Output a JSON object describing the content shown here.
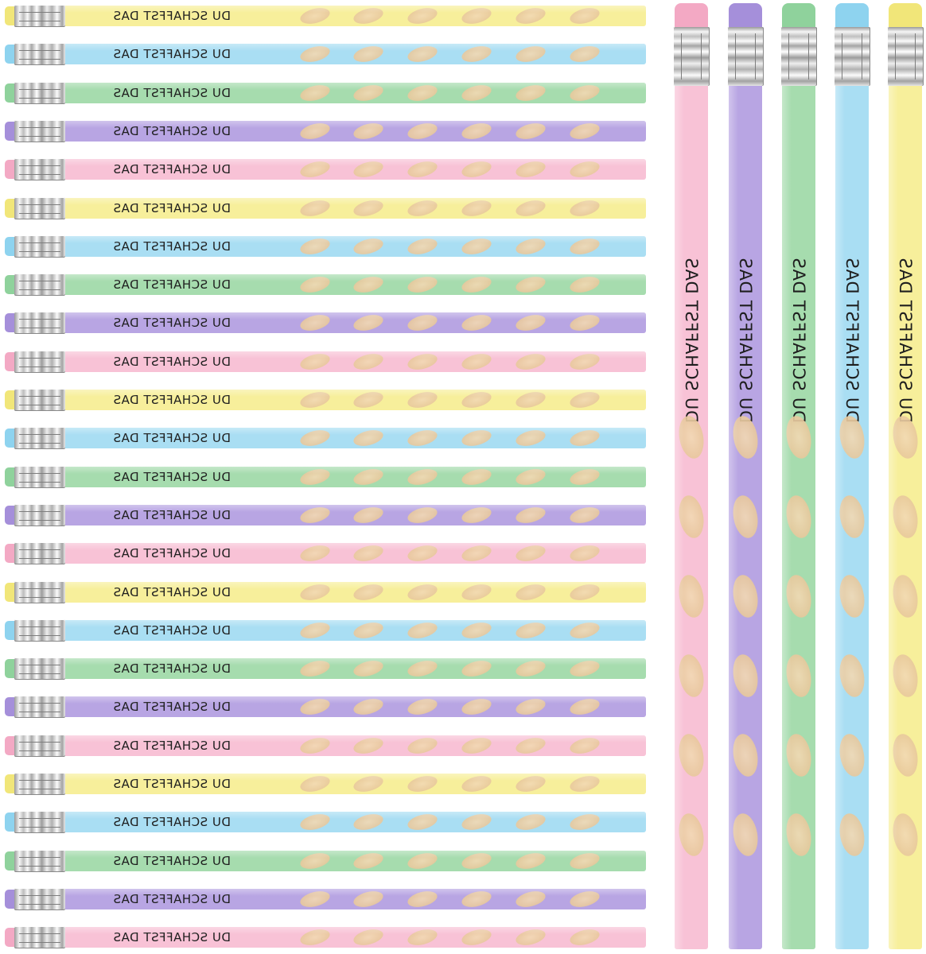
{
  "product": {
    "pencil_text": "DU SCHAFFST DAS",
    "ferrule_icon": "metal-ferrule",
    "grip_icon": "grip-dot"
  },
  "colors": {
    "yellow": {
      "body": "#f7ef9b",
      "tip": "#f1e679"
    },
    "blue": {
      "body": "#a9def3",
      "tip": "#8ed3ef"
    },
    "green": {
      "body": "#a6dcae",
      "tip": "#8fd29c"
    },
    "purple": {
      "body": "#b8a5e3",
      "tip": "#a58fda"
    },
    "pink": {
      "body": "#f8c2d6",
      "tip": "#f3a9c4"
    }
  },
  "horizontal_pencils": [
    {
      "color": "yellow",
      "text": "DU SCHAFFST DAS"
    },
    {
      "color": "blue",
      "text": "DU SCHAFFST DAS"
    },
    {
      "color": "green",
      "text": "DU SCHAFFST DAS"
    },
    {
      "color": "purple",
      "text": "DU SCHAFFST DAS"
    },
    {
      "color": "pink",
      "text": "DU SCHAFFST DAS"
    },
    {
      "color": "yellow",
      "text": "DU SCHAFFST DAS"
    },
    {
      "color": "blue",
      "text": "DU SCHAFFST DAS"
    },
    {
      "color": "green",
      "text": "DU SCHAFFST DAS"
    },
    {
      "color": "purple",
      "text": "DU SCHAFFST DAS"
    },
    {
      "color": "pink",
      "text": "DU SCHAFFST DAS"
    },
    {
      "color": "yellow",
      "text": "DU SCHAFFST DAS"
    },
    {
      "color": "blue",
      "text": "DU SCHAFFST DAS"
    },
    {
      "color": "green",
      "text": "DU SCHAFFST DAS"
    },
    {
      "color": "purple",
      "text": "DU SCHAFFST DAS"
    },
    {
      "color": "pink",
      "text": "DU SCHAFFST DAS"
    },
    {
      "color": "yellow",
      "text": "DU SCHAFFST DAS"
    },
    {
      "color": "blue",
      "text": "DU SCHAFFST DAS"
    },
    {
      "color": "green",
      "text": "DU SCHAFFST DAS"
    },
    {
      "color": "purple",
      "text": "DU SCHAFFST DAS"
    },
    {
      "color": "pink",
      "text": "DU SCHAFFST DAS"
    },
    {
      "color": "yellow",
      "text": "DU SCHAFFST DAS"
    },
    {
      "color": "blue",
      "text": "DU SCHAFFST DAS"
    },
    {
      "color": "green",
      "text": "DU SCHAFFST DAS"
    },
    {
      "color": "purple",
      "text": "DU SCHAFFST DAS"
    },
    {
      "color": "pink",
      "text": "DU SCHAFFST DAS"
    }
  ],
  "vertical_pencils": [
    {
      "color": "pink",
      "text": "DU SCHAFFST DAS"
    },
    {
      "color": "purple",
      "text": "DU SCHAFFST DAS"
    },
    {
      "color": "green",
      "text": "DU SCHAFFST DAS"
    },
    {
      "color": "blue",
      "text": "DU SCHAFFST DAS"
    },
    {
      "color": "yellow",
      "text": "DU SCHAFFST DAS"
    }
  ]
}
